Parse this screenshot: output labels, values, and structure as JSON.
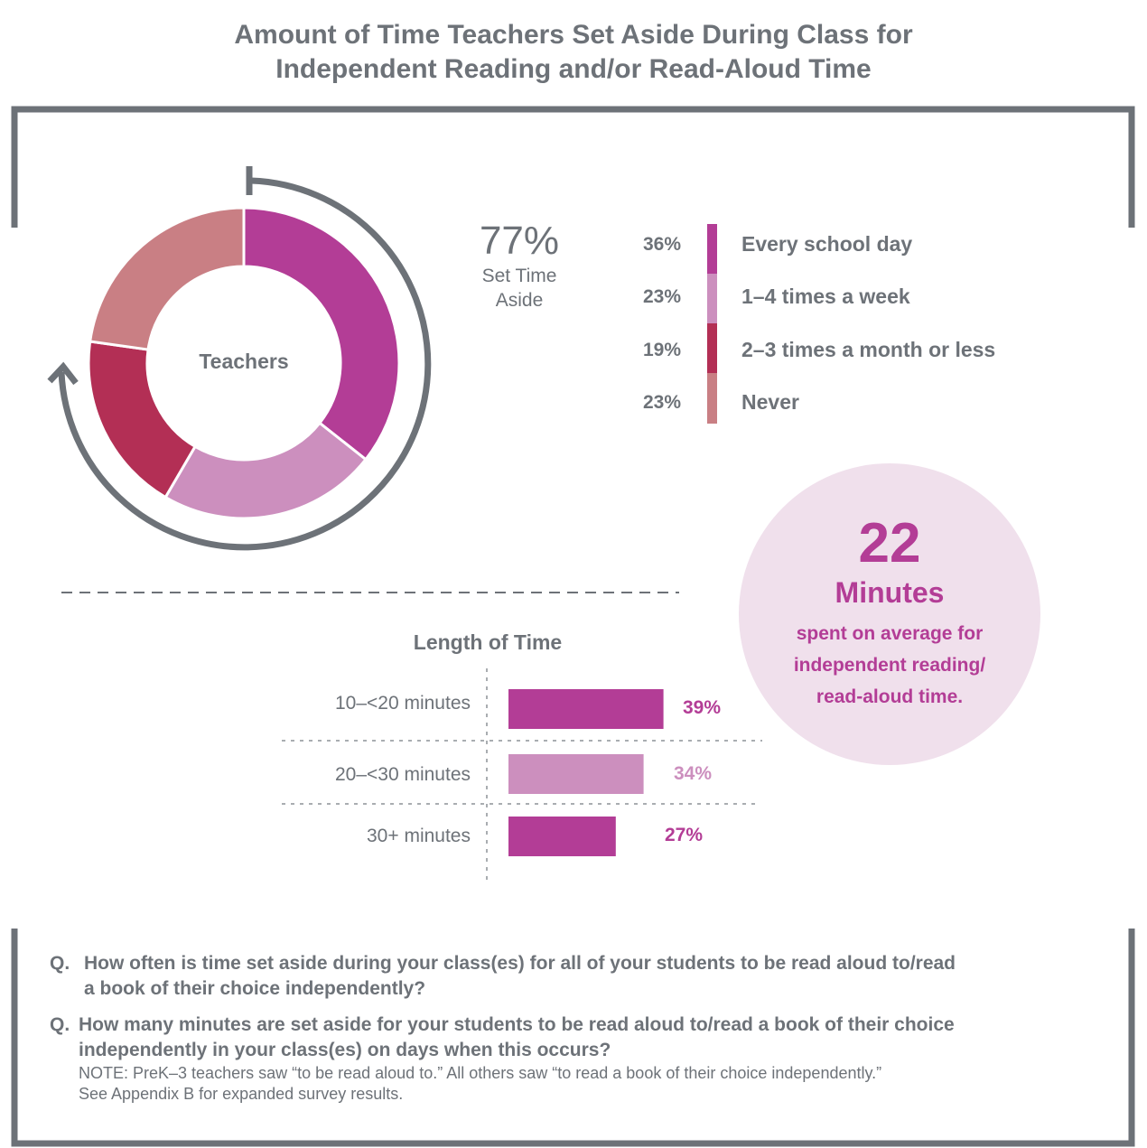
{
  "title": {
    "line1": "Amount of Time Teachers Set Aside During Class for",
    "line2": "Independent Reading and/or Read-Aloud Time"
  },
  "donut": {
    "center_label": "Teachers",
    "highlight_value": "77%",
    "highlight_label_line1": "Set Time",
    "highlight_label_line2": "Aside"
  },
  "chart_data": [
    {
      "type": "pie",
      "variant": "donut",
      "categories": [
        "Every school day",
        "1–4 times a week",
        "2–3 times a month or less",
        "Never"
      ],
      "values": [
        36,
        23,
        19,
        23
      ],
      "value_labels": [
        "36%",
        "23%",
        "19%",
        "23%"
      ],
      "colors": [
        "#b33d96",
        "#cc8fbe",
        "#b32f55",
        "#c97f84"
      ],
      "legend_position": "right"
    },
    {
      "type": "bar",
      "orientation": "horizontal",
      "title": "Length of Time",
      "categories": [
        "10–<20  minutes",
        "20–<30 minutes",
        "30+ minutes"
      ],
      "values": [
        39,
        34,
        27
      ],
      "value_labels": [
        "39%",
        "34%",
        "27%"
      ],
      "colors": [
        "#b33d96",
        "#cc8fbe",
        "#b33d96"
      ],
      "xlim": [
        0,
        60
      ],
      "grid": false
    }
  ],
  "callout": {
    "number": "22",
    "unit": "Minutes",
    "line1": "spent on average for",
    "line2": "independent reading/",
    "line3": "read-aloud time."
  },
  "questions": {
    "q1_prefix": "Q.",
    "q1_line1": "How often is time set aside during your class(es) for all of your students to be read aloud to/read",
    "q1_line2": "a book of their choice independently?",
    "q2_prefix": "Q.",
    "q2_line1": "How many minutes are set aside for your students to be read aloud to/read a book of their choice",
    "q2_line2": "independently in your class(es) on days when this occurs?",
    "note_line1": "NOTE: PreK–3 teachers saw “to be read aloud to.” All others saw “to read a book of their choice independently.”",
    "note_line2": "See Appendix B for expanded survey results."
  }
}
